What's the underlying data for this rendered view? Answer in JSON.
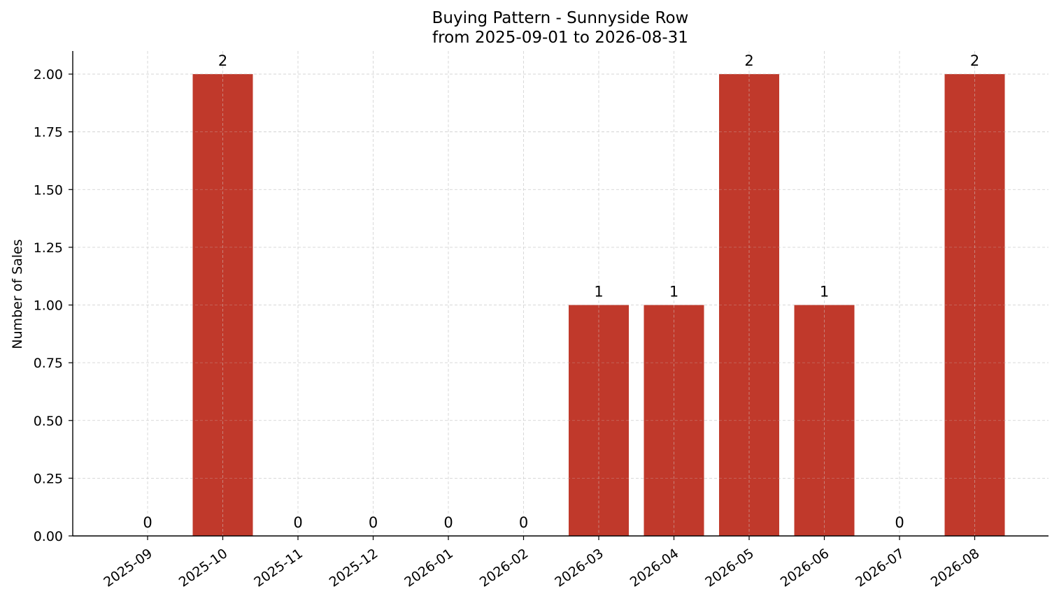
{
  "chart_data": {
    "type": "bar",
    "title": "Buying Pattern - Sunnyside Row",
    "subtitle": "from 2025-09-01 to 2026-08-31",
    "xlabel": "",
    "ylabel": "Number of Sales",
    "categories": [
      "2025-09",
      "2025-10",
      "2025-11",
      "2025-12",
      "2026-01",
      "2026-02",
      "2026-03",
      "2026-04",
      "2026-05",
      "2026-06",
      "2026-07",
      "2026-08"
    ],
    "values": [
      0,
      2,
      0,
      0,
      0,
      0,
      1,
      1,
      2,
      1,
      0,
      2
    ],
    "data_labels": [
      "0",
      "2",
      "0",
      "0",
      "0",
      "0",
      "1",
      "1",
      "2",
      "1",
      "0",
      "2"
    ],
    "ylim": [
      0,
      2.1
    ],
    "yticks": [
      0,
      0.25,
      0.5,
      0.75,
      1.0,
      1.25,
      1.5,
      1.75,
      2.0
    ],
    "ytick_labels": [
      "0.00",
      "0.25",
      "0.50",
      "0.75",
      "1.00",
      "1.25",
      "1.50",
      "1.75",
      "2.00"
    ],
    "grid": true,
    "legend": false,
    "bar_color": "#c0392b"
  }
}
